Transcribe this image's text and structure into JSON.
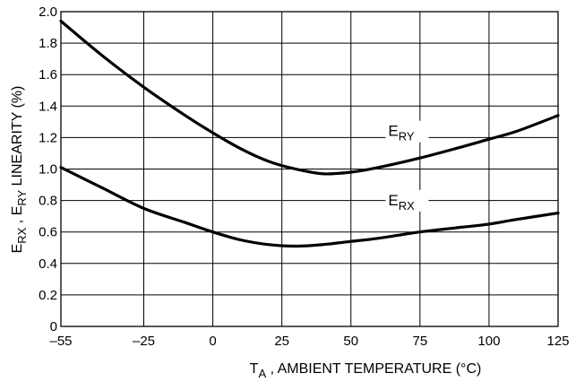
{
  "chart_data": {
    "type": "line",
    "xlabel": {
      "main": "T",
      "sub": "A",
      "rest": " , AMBIENT TEMPERATURE (°C)"
    },
    "ylabel": {
      "e1": "E",
      "s1": "RX",
      "sep": " , ",
      "e2": "E",
      "s2": "RY",
      "rest": " LINEARITY (%)"
    },
    "xlim": [
      -55,
      125
    ],
    "ylim": [
      0,
      2.0
    ],
    "x_ticks": [
      "–55",
      "–25",
      "0",
      "25",
      "50",
      "75",
      "100",
      "125"
    ],
    "x_tick_values": [
      -55,
      -25,
      0,
      25,
      50,
      75,
      100,
      125
    ],
    "y_ticks": [
      "0",
      "0.2",
      "0.4",
      "0.6",
      "0.8",
      "1.0",
      "1.2",
      "1.4",
      "1.6",
      "1.8",
      "2.0"
    ],
    "y_tick_values": [
      0,
      0.2,
      0.4,
      0.6,
      0.8,
      1.0,
      1.2,
      1.4,
      1.6,
      1.8,
      2.0
    ],
    "grid": true,
    "series": [
      {
        "name": "ERY",
        "label_main": "E",
        "label_sub": "RY",
        "x": [
          -55,
          -40,
          -25,
          -10,
          0,
          10,
          20,
          30,
          40,
          50,
          60,
          75,
          90,
          100,
          110,
          125
        ],
        "values": [
          1.94,
          1.72,
          1.52,
          1.34,
          1.23,
          1.13,
          1.05,
          1.0,
          0.97,
          0.98,
          1.01,
          1.07,
          1.14,
          1.19,
          1.24,
          1.34
        ]
      },
      {
        "name": "ERX",
        "label_main": "E",
        "label_sub": "RX",
        "x": [
          -55,
          -40,
          -25,
          -10,
          0,
          10,
          20,
          30,
          40,
          50,
          60,
          75,
          90,
          100,
          110,
          125
        ],
        "values": [
          1.01,
          0.88,
          0.75,
          0.66,
          0.6,
          0.55,
          0.52,
          0.51,
          0.52,
          0.54,
          0.56,
          0.6,
          0.63,
          0.65,
          0.68,
          0.72
        ]
      }
    ]
  }
}
